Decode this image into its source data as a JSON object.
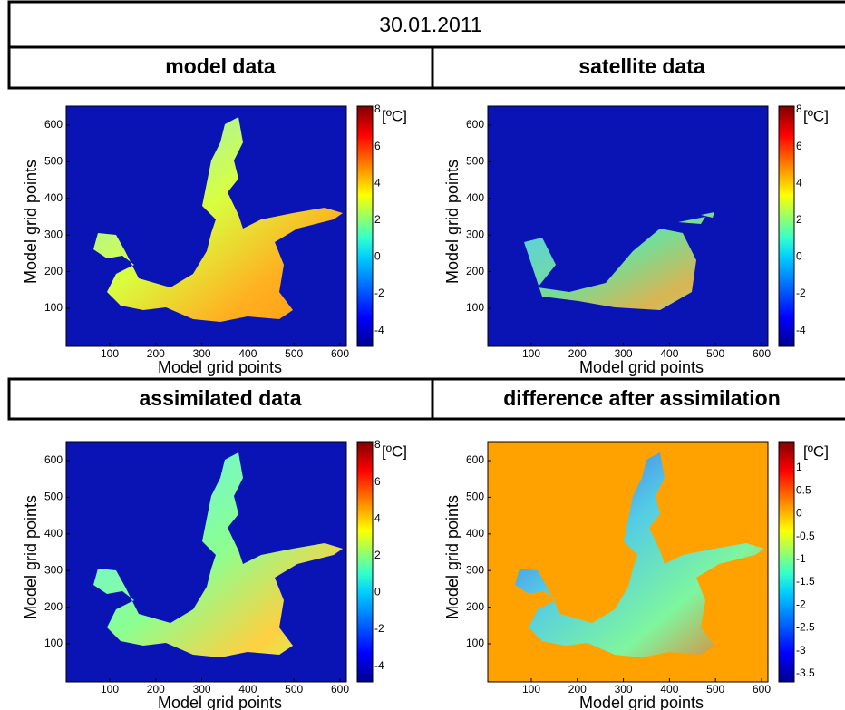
{
  "header": {
    "date": "30.01.2011"
  },
  "panels": [
    {
      "title": "model data",
      "x_label": "Model grid points",
      "y_label": "Model grid points",
      "x_ticks": [
        "100",
        "200",
        "300",
        "400",
        "500",
        "600"
      ],
      "y_ticks": [
        "100",
        "200",
        "300",
        "400",
        "500",
        "600"
      ],
      "colorbar": {
        "unit": "[ºC]",
        "ticks": [
          "8",
          "6",
          "4",
          "2",
          "0",
          "-2",
          "-4"
        ]
      }
    },
    {
      "title": "satellite data",
      "x_label": "Model grid points",
      "y_label": "Model grid points",
      "x_ticks": [
        "100",
        "200",
        "300",
        "400",
        "500",
        "600"
      ],
      "y_ticks": [
        "100",
        "200",
        "300",
        "400",
        "500",
        "600"
      ],
      "colorbar": {
        "unit": "[ºC]",
        "ticks": [
          "8",
          "6",
          "4",
          "2",
          "0",
          "-2",
          "-4"
        ]
      }
    },
    {
      "title": "assimilated data",
      "x_label": "Model grid points",
      "y_label": "Model grid points",
      "x_ticks": [
        "100",
        "200",
        "300",
        "400",
        "500",
        "600"
      ],
      "y_ticks": [
        "100",
        "200",
        "300",
        "400",
        "500",
        "600"
      ],
      "colorbar": {
        "unit": "[ºC]",
        "ticks": [
          "8",
          "6",
          "4",
          "2",
          "0",
          "-2",
          "-4"
        ]
      }
    },
    {
      "title": "difference after assimilation",
      "x_label": "Model grid points",
      "y_label": "Model grid points",
      "x_ticks": [
        "100",
        "200",
        "300",
        "400",
        "500",
        "600"
      ],
      "y_ticks": [
        "100",
        "200",
        "300",
        "400",
        "500",
        "600"
      ],
      "colorbar": {
        "unit": "[ºC]",
        "ticks": [
          "1",
          "0.5",
          "0",
          "-0.5",
          "-1",
          "-1.5",
          "-2",
          "-2.5",
          "-3",
          "-3.5"
        ]
      }
    }
  ]
}
